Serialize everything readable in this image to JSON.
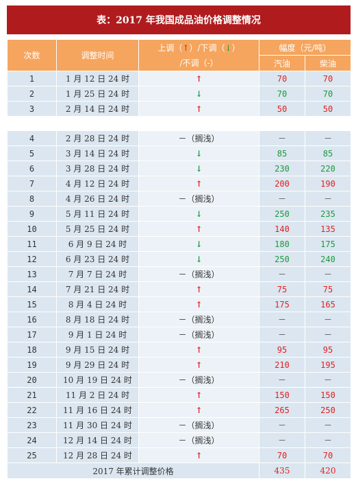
{
  "title": "表：2017 年我国成品油价格调整情况",
  "header": {
    "col_index": "次数",
    "col_time": "调整时间",
    "col_direction_line1_a": "上调（",
    "col_direction_line1_b": "）/下调（",
    "col_direction_line1_c": "）",
    "col_direction_line2": "/不调（-）",
    "up_arrow": "↑",
    "down_arrow": "↓",
    "col_range": "幅度（元/吨）",
    "col_gasoline": "汽油",
    "col_diesel": "柴油"
  },
  "colors": {
    "up": "#e02020",
    "down": "#1a9a3a",
    "title_bg": "#b01c1e",
    "header_bg": "#f5a55e"
  },
  "rows_a": [
    {
      "n": "1",
      "time": "1 月 12 日 24 时",
      "dir": "up",
      "dir_text": "↑",
      "gas": "70",
      "diesel": "70"
    },
    {
      "n": "2",
      "time": "1 月 25 日 24 时",
      "dir": "down",
      "dir_text": "↓",
      "gas": "70",
      "diesel": "70"
    },
    {
      "n": "3",
      "time": "2 月 14 日 24 时",
      "dir": "up",
      "dir_text": "↑",
      "gas": "50",
      "diesel": "50"
    }
  ],
  "rows_b": [
    {
      "n": "4",
      "time": "2 月 28 日 24 时",
      "dir": "flat",
      "dir_text": "－（搁浅）",
      "gas": "－",
      "diesel": "－"
    },
    {
      "n": "5",
      "time": "3 月 14 日 24 时",
      "dir": "down",
      "dir_text": "↓",
      "gas": "85",
      "diesel": "85"
    },
    {
      "n": "6",
      "time": "3 月 28 日 24 时",
      "dir": "down",
      "dir_text": "↓",
      "gas": "230",
      "diesel": "220"
    },
    {
      "n": "7",
      "time": "4 月 12 日 24 时",
      "dir": "up",
      "dir_text": "↑",
      "gas": "200",
      "diesel": "190"
    },
    {
      "n": "8",
      "time": "4 月 26 日 24 时",
      "dir": "flat",
      "dir_text": "－（搁浅）",
      "gas": "－",
      "diesel": "－"
    },
    {
      "n": "9",
      "time": "5 月 11 日 24 时",
      "dir": "down",
      "dir_text": "↓",
      "gas": "250",
      "diesel": "235"
    },
    {
      "n": "10",
      "time": "5 月 25 日 24 时",
      "dir": "up",
      "dir_text": "↑",
      "gas": "140",
      "diesel": "135"
    },
    {
      "n": "11",
      "time": "6 月 9 日 24 时",
      "dir": "down",
      "dir_text": "↓",
      "gas": "180",
      "diesel": "175"
    },
    {
      "n": "12",
      "time": "6 月 23 日 24 时",
      "dir": "down",
      "dir_text": "↓",
      "gas": "250",
      "diesel": "240"
    },
    {
      "n": "13",
      "time": "7 月 7 日 24 时",
      "dir": "flat",
      "dir_text": "－（搁浅）",
      "gas": "－",
      "diesel": "－"
    },
    {
      "n": "14",
      "time": "7 月 21 日 24 时",
      "dir": "up",
      "dir_text": "↑",
      "gas": "75",
      "diesel": "75"
    },
    {
      "n": "15",
      "time": "8 月 4 日 24 时",
      "dir": "up",
      "dir_text": "↑",
      "gas": "175",
      "diesel": "165"
    },
    {
      "n": "16",
      "time": "8 月 18 日 24 时",
      "dir": "flat",
      "dir_text": "－（搁浅）",
      "gas": "－",
      "diesel": "－"
    },
    {
      "n": "17",
      "time": "9 月 1 日 24 时",
      "dir": "flat",
      "dir_text": "－（搁浅）",
      "gas": "－",
      "diesel": "－"
    },
    {
      "n": "18",
      "time": "9 月 15 日 24 时",
      "dir": "up",
      "dir_text": "↑",
      "gas": "95",
      "diesel": "95"
    },
    {
      "n": "19",
      "time": "9 月 29 日 24 时",
      "dir": "up",
      "dir_text": "↑",
      "gas": "210",
      "diesel": "195"
    },
    {
      "n": "20",
      "time": "10 月 19 日 24 时",
      "dir": "flat",
      "dir_text": "－（搁浅）",
      "gas": "－",
      "diesel": "－"
    },
    {
      "n": "21",
      "time": "11 月 2 日 24 时",
      "dir": "up",
      "dir_text": "↑",
      "gas": "150",
      "diesel": "150"
    },
    {
      "n": "22",
      "time": "11 月 16 日 24 时",
      "dir": "up",
      "dir_text": "↑",
      "gas": "265",
      "diesel": "250"
    },
    {
      "n": "23",
      "time": "11 月 30 日 24 时",
      "dir": "flat",
      "dir_text": "－（搁浅）",
      "gas": "－",
      "diesel": "－"
    },
    {
      "n": "24",
      "time": "12 月 14 日 24 时",
      "dir": "flat",
      "dir_text": "－（搁浅）",
      "gas": "－",
      "diesel": "－"
    },
    {
      "n": "25",
      "time": "12 月 28 日 24 时",
      "dir": "up",
      "dir_text": "↑",
      "gas": "70",
      "diesel": "70"
    }
  ],
  "total": {
    "label": "2017 年累计调整价格",
    "gas": "435",
    "diesel": "420"
  }
}
